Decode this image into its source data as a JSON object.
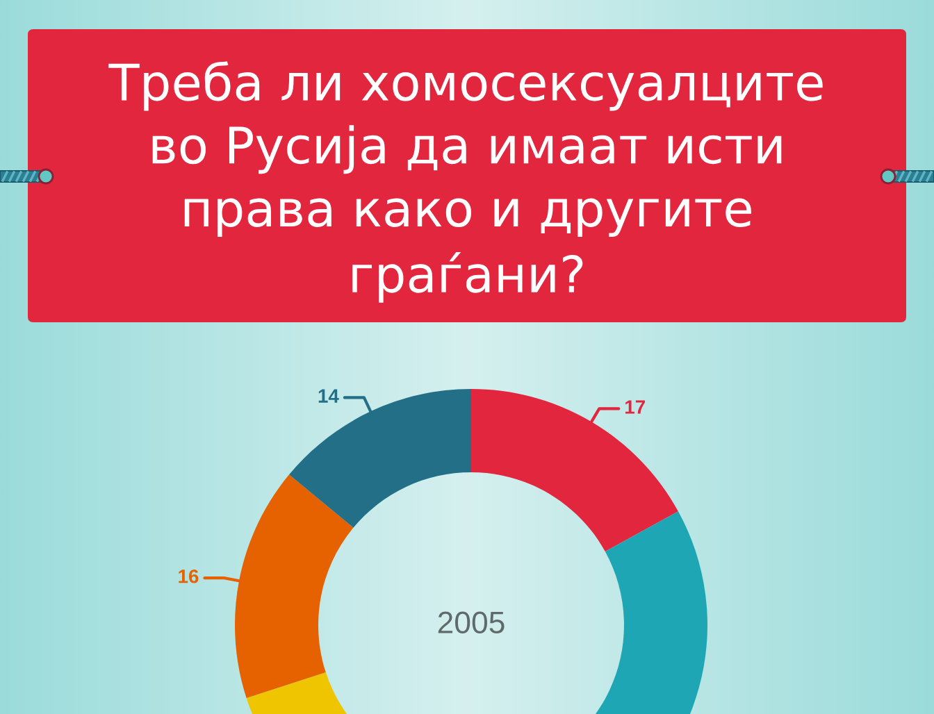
{
  "chart_data": {
    "type": "donut",
    "title": "Треба ли хомосексуалците во Русија да имаат исти права како и другите граѓани?",
    "categories": [
      null,
      null,
      null,
      null,
      null
    ],
    "values": [
      17,
      30,
      23,
      16,
      14
    ],
    "colors": [
      "#e1263e",
      "#1fa6b5",
      "#eec500",
      "#e66100",
      "#236f87"
    ],
    "value_labels": [
      "17",
      null,
      null,
      "16",
      "14"
    ],
    "annotations": [
      "2005"
    ]
  }
}
